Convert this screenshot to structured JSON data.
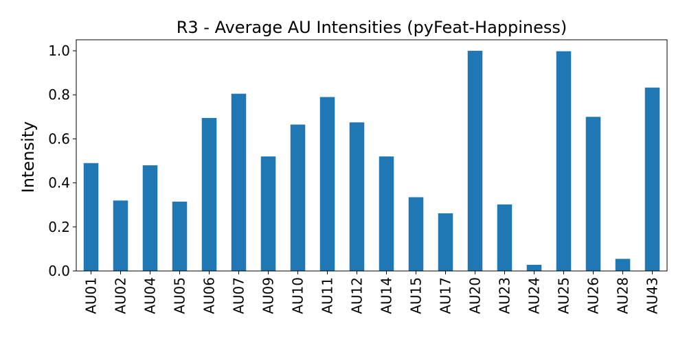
{
  "chart_data": {
    "type": "bar",
    "title": "R3 - Average AU Intensities (pyFeat-Happiness)",
    "xlabel": "",
    "ylabel": "Intensity",
    "ylim": [
      0,
      1.05
    ],
    "yticks": [
      "0.0",
      "0.2",
      "0.4",
      "0.6",
      "0.8",
      "1.0"
    ],
    "grid": false,
    "bar_color": "#1f77b4",
    "categories": [
      "AU01",
      "AU02",
      "AU04",
      "AU05",
      "AU06",
      "AU07",
      "AU09",
      "AU10",
      "AU11",
      "AU12",
      "AU14",
      "AU15",
      "AU17",
      "AU20",
      "AU23",
      "AU24",
      "AU25",
      "AU26",
      "AU28",
      "AU43"
    ],
    "values": [
      0.49,
      0.32,
      0.48,
      0.315,
      0.695,
      0.805,
      0.52,
      0.665,
      0.79,
      0.675,
      0.52,
      0.335,
      0.262,
      1.0,
      0.302,
      0.028,
      0.998,
      0.7,
      0.055,
      0.833
    ]
  }
}
